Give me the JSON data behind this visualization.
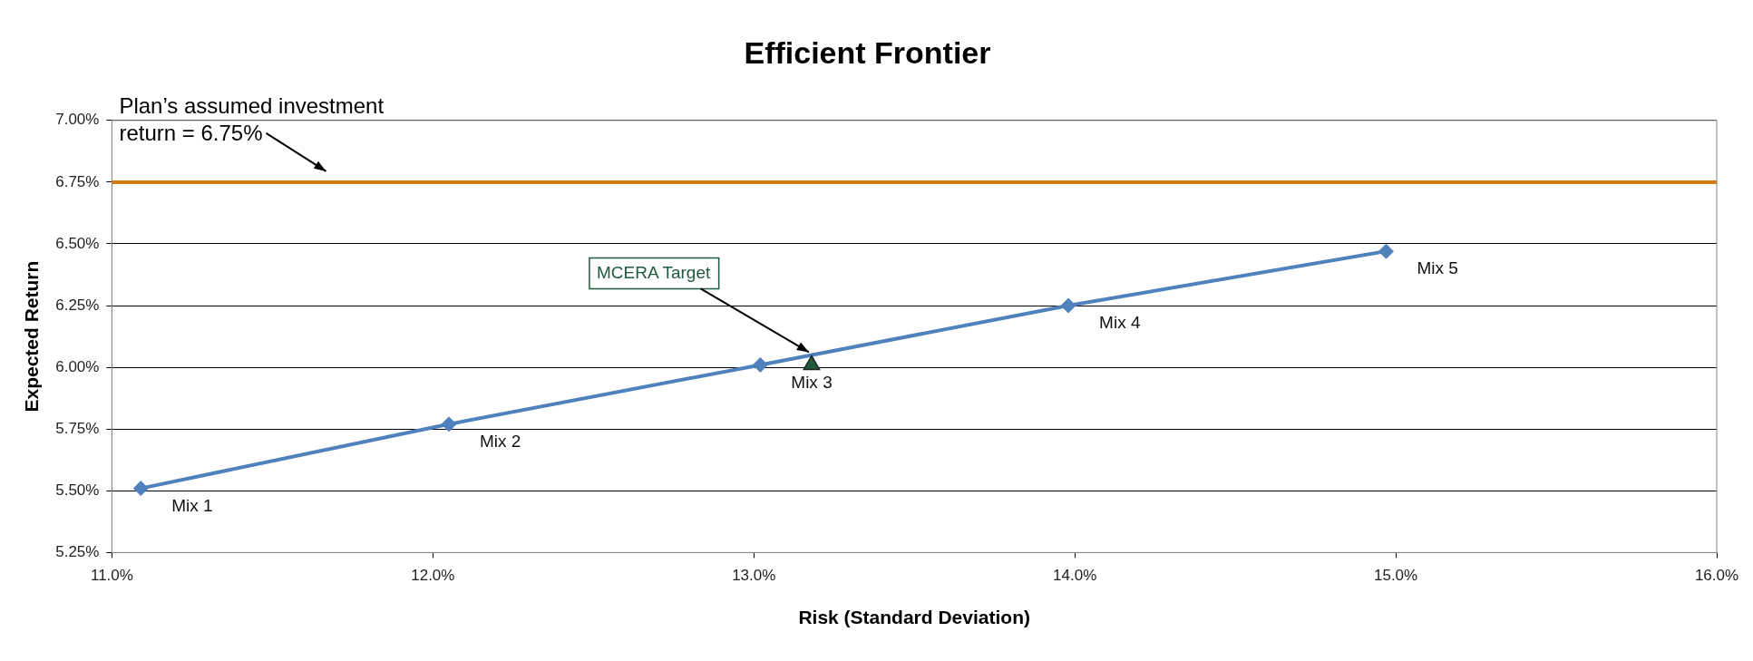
{
  "chart_data": {
    "type": "line",
    "title": "Efficient Frontier",
    "xlabel": "Risk (Standard Deviation)",
    "ylabel": "Expected Return",
    "xlim": [
      11,
      16
    ],
    "xticks": [
      {
        "value": 11,
        "label": "11.0%"
      },
      {
        "value": 12,
        "label": "12.0%"
      },
      {
        "value": 13,
        "label": "13.0%"
      },
      {
        "value": 14,
        "label": "14.0%"
      },
      {
        "value": 15,
        "label": "15.0%"
      },
      {
        "value": 16,
        "label": "16.0%"
      }
    ],
    "ylim": [
      5.25,
      7
    ],
    "yticks": [
      {
        "value": 5.25,
        "label": "5.25%"
      },
      {
        "value": 5.5,
        "label": "5.50%"
      },
      {
        "value": 5.75,
        "label": "5.75%"
      },
      {
        "value": 6,
        "label": "6.00%"
      },
      {
        "value": 6.25,
        "label": "6.25%"
      },
      {
        "value": 6.5,
        "label": "6.50%"
      },
      {
        "value": 6.75,
        "label": "6.75%"
      },
      {
        "value": 7,
        "label": "7.00%"
      }
    ],
    "grid": "y",
    "legend": false,
    "marker": "diamond",
    "line_style": "solid",
    "series": [
      {
        "color": "#4f81bd",
        "x": [
          11.09,
          12.05,
          13.02,
          13.98,
          14.97
        ],
        "values": [
          5.51,
          5.77,
          6.01,
          6.25,
          6.47
        ]
      },
      {
        "type": "scatter",
        "name": "MCERA Target",
        "marker": "triangle",
        "color": "#1e5a3c",
        "x": [
          13.18
        ],
        "values": [
          6.01
        ]
      }
    ],
    "ref_lines": [
      {
        "axis": "y",
        "value": 6.75,
        "label": "Plan’s assumed investment return = 6.75%",
        "color": "#d07a10",
        "line_style": "solid"
      }
    ],
    "annotations": [
      {
        "text": "Mix 1",
        "x": 11.09,
        "y": 5.51
      },
      {
        "text": "Mix 2",
        "x": 12.05,
        "y": 5.77
      },
      {
        "text": "Mix 3",
        "x": 13.02,
        "y": 6.01
      },
      {
        "text": "Mix 4",
        "x": 13.98,
        "y": 6.25
      },
      {
        "text": "Mix 5",
        "x": 14.97,
        "y": 6.47
      }
    ]
  }
}
